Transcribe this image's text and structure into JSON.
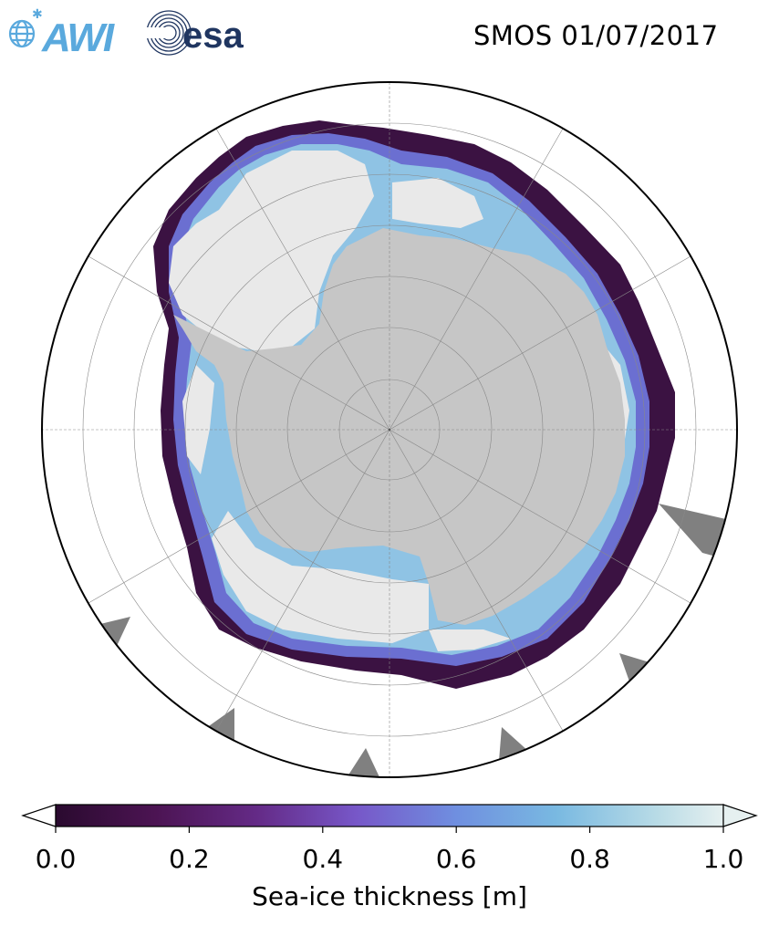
{
  "title": "SMOS 01/07/2017",
  "logos": {
    "awi_text": "AWI",
    "esa_text": "esa"
  },
  "colors": {
    "land": "#c6c6c6",
    "thick_ice": "#e9e9e9",
    "ice_edge_dark": "#3b1242",
    "ice_mid": "#6b6fd1",
    "ice_light": "#8fc3e4",
    "missing": "#808080",
    "ocean": "#ffffff",
    "logo_blue": "#5aa9dd",
    "logo_navy": "#1f3560"
  },
  "colorbar": {
    "label": "Sea-ice thickness [m]",
    "colormap": "dense",
    "vmin": 0.0,
    "vmax": 1.0,
    "extend": "both",
    "ticks": [
      "0.0",
      "0.2",
      "0.4",
      "0.6",
      "0.8",
      "1.0"
    ]
  },
  "map": {
    "projection": "South Polar Stereographic",
    "graticule": true
  }
}
